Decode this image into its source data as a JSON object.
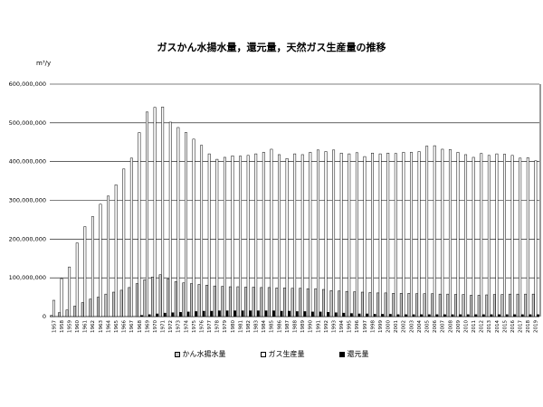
{
  "chart_data": {
    "type": "bar",
    "title": "ガスかん水揚水量，還元量，天然ガス生産量の推移",
    "unit_label": "m³/y",
    "ylim": [
      0,
      600000000
    ],
    "yticks": [
      "0",
      "100,000,000",
      "200,000,000",
      "300,000,000",
      "400,000,000",
      "500,000,000",
      "600,000,000"
    ],
    "categories": [
      "1957",
      "1958",
      "1959",
      "1960",
      "1961",
      "1962",
      "1963",
      "1964",
      "1965",
      "1966",
      "1967",
      "1968",
      "1969",
      "1970",
      "1971",
      "1972",
      "1973",
      "1974",
      "1975",
      "1976",
      "1977",
      "1978",
      "1979",
      "1980",
      "1981",
      "1982",
      "1983",
      "1984",
      "1985",
      "1986",
      "1987",
      "1988",
      "1989",
      "1990",
      "1991",
      "1992",
      "1993",
      "1994",
      "1995",
      "1996",
      "1997",
      "1998",
      "1999",
      "2000",
      "2001",
      "2002",
      "2003",
      "2004",
      "2005",
      "2006",
      "2007",
      "2008",
      "2009",
      "2010",
      "2011",
      "2012",
      "2013",
      "2014",
      "2015",
      "2016",
      "2017",
      "2018",
      "2019"
    ],
    "series": [
      {
        "name": "かん水揚水量",
        "color": "#c8c8c8",
        "values": [
          3000000,
          10000000,
          17000000,
          27000000,
          36000000,
          45000000,
          50000000,
          58000000,
          63000000,
          68000000,
          75000000,
          85000000,
          95000000,
          102000000,
          108000000,
          97000000,
          90000000,
          87000000,
          85000000,
          83000000,
          81000000,
          79000000,
          78000000,
          77000000,
          77000000,
          76000000,
          76000000,
          75000000,
          75000000,
          74000000,
          74000000,
          73000000,
          73000000,
          72000000,
          72000000,
          70000000,
          67000000,
          66000000,
          65000000,
          64000000,
          63000000,
          62000000,
          61000000,
          61000000,
          60000000,
          60000000,
          60000000,
          59000000,
          59000000,
          59000000,
          58000000,
          58000000,
          57000000,
          57000000,
          55000000,
          55000000,
          56000000,
          57000000,
          57000000,
          58000000,
          58000000,
          58000000,
          58000000
        ]
      },
      {
        "name": "ガス生産量",
        "color": "#ffffff",
        "values": [
          42000000,
          98000000,
          128000000,
          190000000,
          232000000,
          258000000,
          290000000,
          311000000,
          340000000,
          381000000,
          409000000,
          475000000,
          528000000,
          540000000,
          541000000,
          502000000,
          488000000,
          475000000,
          458000000,
          442000000,
          420000000,
          406000000,
          411000000,
          415000000,
          414000000,
          416000000,
          420000000,
          424000000,
          432000000,
          418000000,
          408000000,
          420000000,
          418000000,
          424000000,
          430000000,
          426000000,
          430000000,
          422000000,
          420000000,
          423000000,
          413000000,
          422000000,
          420000000,
          422000000,
          421000000,
          424000000,
          424000000,
          426000000,
          440000000,
          441000000,
          432000000,
          431000000,
          424000000,
          418000000,
          411000000,
          421000000,
          416000000,
          420000000,
          419000000,
          416000000,
          409000000,
          410000000,
          402000000
        ]
      },
      {
        "name": "還元量",
        "color": "#000000",
        "values": [
          0,
          0,
          0,
          0,
          0,
          0,
          0,
          0,
          0,
          0,
          0,
          3000000,
          5000000,
          7000000,
          9000000,
          10000000,
          11000000,
          12000000,
          13000000,
          14000000,
          14000000,
          15000000,
          15000000,
          15000000,
          15000000,
          15000000,
          15000000,
          15000000,
          15000000,
          14000000,
          14000000,
          13000000,
          13000000,
          12000000,
          12000000,
          11000000,
          10000000,
          9000000,
          8000000,
          7000000,
          7000000,
          6000000,
          6000000,
          6000000,
          5000000,
          5000000,
          5000000,
          5000000,
          5000000,
          5000000,
          5000000,
          5000000,
          5000000,
          5000000,
          5000000,
          5000000,
          5000000,
          5000000,
          5000000,
          5000000,
          5000000,
          5000000,
          5000000
        ]
      }
    ],
    "legend": [
      "かん水揚水量",
      "ガス生産量",
      "還元量"
    ],
    "legend_position": "bottom",
    "grid": true
  }
}
